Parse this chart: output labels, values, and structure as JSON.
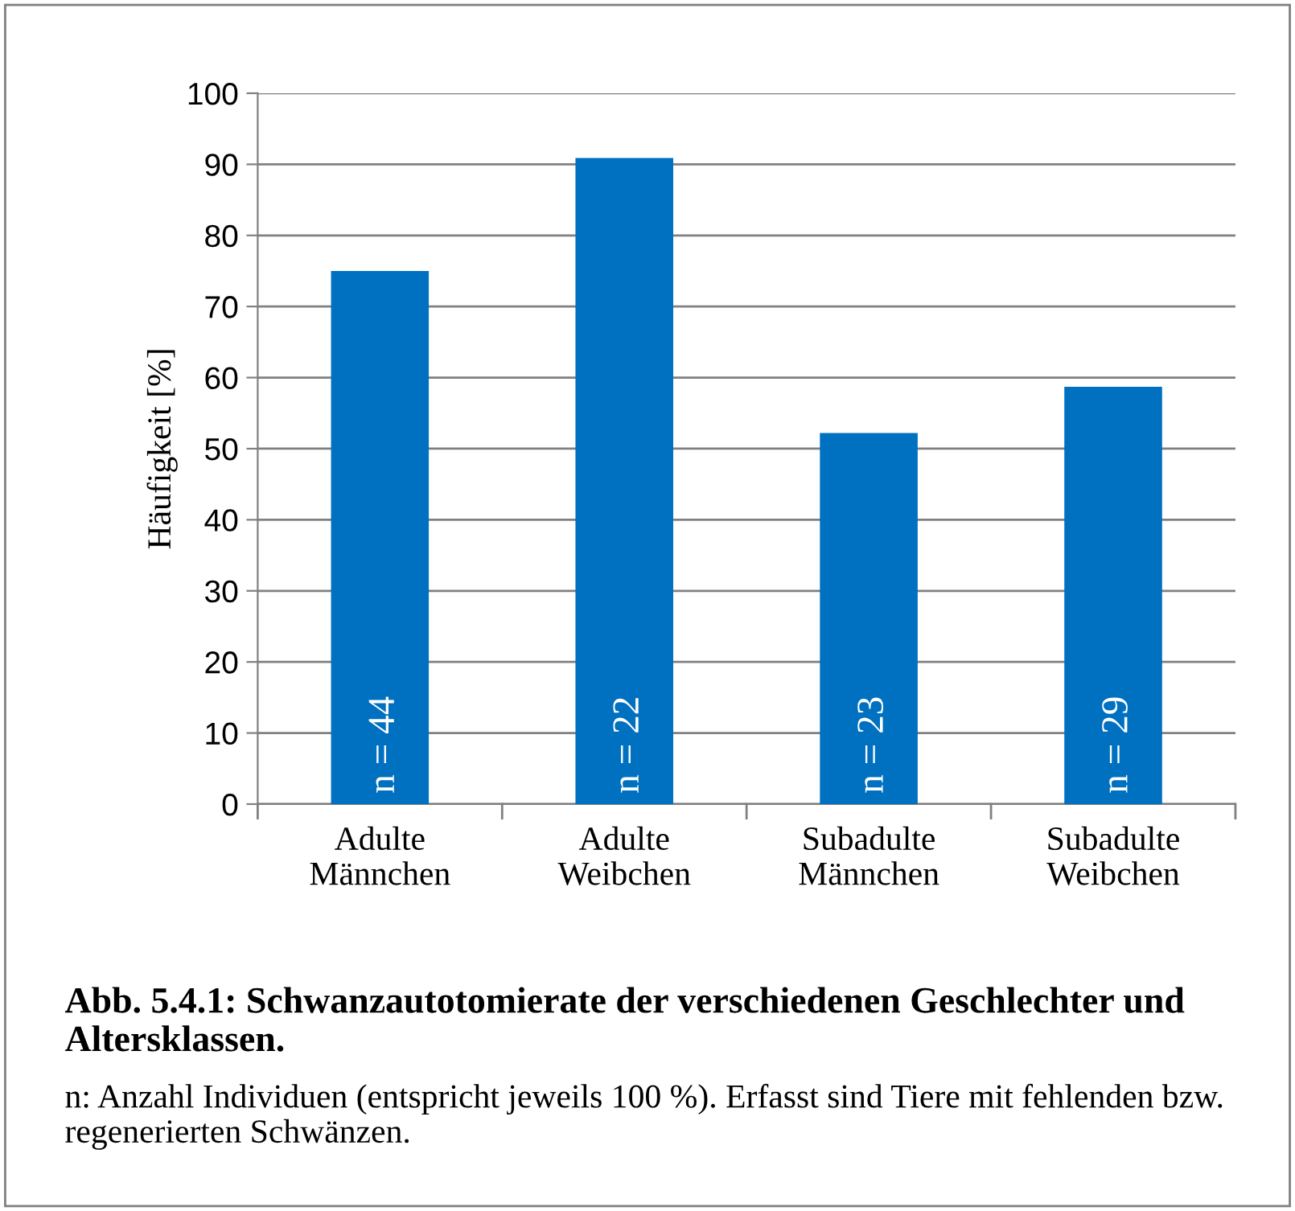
{
  "chart_data": {
    "type": "bar",
    "title": "Abb. 5.4.1: Schwanzautotomierate der verschiedenen Geschlechter und Altersklassen.",
    "ylabel": "Häufigkeit [%]",
    "categories": [
      "Adulte\nMännchen",
      "Adulte\nWeibchen",
      "Subadulte\nMännchen",
      "Subadulte\nWeibchen"
    ],
    "values": [
      75,
      90.9,
      52.2,
      58.7
    ],
    "color": "#0070c0",
    "ylim": [
      0,
      100
    ],
    "yticks": [
      0,
      10,
      20,
      30,
      40,
      50,
      60,
      70,
      80,
      90,
      100
    ],
    "grid": "y",
    "legend": false,
    "annotations": [
      "n = 44",
      "n = 22",
      "n = 23",
      "n = 29",
      "n: Anzahl Individuen (entspricht jeweils 100 %). Erfasst sind Tiere mit fehlenden bzw. regenerierten Schwänzen."
    ]
  }
}
